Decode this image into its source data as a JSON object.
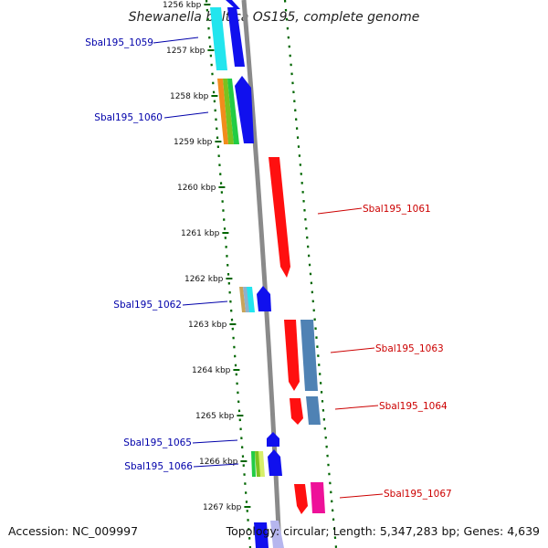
{
  "title": "Shewanella baltica OS195, complete genome",
  "footer": {
    "accession": "Accession: NC_009997",
    "summary": "Topology: circular; Length: 5,347,283 bp; Genes: 4,639"
  },
  "colors": {
    "forward_label": "#0000aa",
    "reverse_label": "#cc0000",
    "tick_green": "#006600",
    "backbone": "#888888"
  },
  "ruler_ticks": [
    {
      "label": "1256 kbp"
    },
    {
      "label": "1257 kbp"
    },
    {
      "label": "1258 kbp"
    },
    {
      "label": "1259 kbp"
    },
    {
      "label": "1260 kbp"
    },
    {
      "label": "1261 kbp"
    },
    {
      "label": "1262 kbp"
    },
    {
      "label": "1263 kbp"
    },
    {
      "label": "1264 kbp"
    },
    {
      "label": "1265 kbp"
    },
    {
      "label": "1266 kbp"
    },
    {
      "label": "1267 kbp"
    }
  ],
  "gene_labels": [
    {
      "id": "g1059",
      "text": "Sbal195_1059",
      "strand": "forward"
    },
    {
      "id": "g1060",
      "text": "Sbal195_1060",
      "strand": "forward"
    },
    {
      "id": "g1061",
      "text": "Sbal195_1061",
      "strand": "reverse"
    },
    {
      "id": "g1062",
      "text": "Sbal195_1062",
      "strand": "forward"
    },
    {
      "id": "g1063",
      "text": "Sbal195_1063",
      "strand": "reverse"
    },
    {
      "id": "g1064",
      "text": "Sbal195_1064",
      "strand": "reverse"
    },
    {
      "id": "g1065",
      "text": "Sbal195_1065",
      "strand": "forward"
    },
    {
      "id": "g1066",
      "text": "Sbal195_1066",
      "strand": "forward"
    },
    {
      "id": "g1067",
      "text": "Sbal195_1067",
      "strand": "reverse"
    }
  ]
}
